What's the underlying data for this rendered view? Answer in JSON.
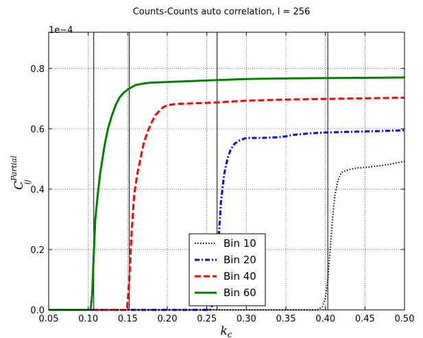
{
  "chart_data": {
    "type": "line",
    "title": "Counts-Counts auto correlation, l = 256",
    "xlabel": "k",
    "xlabel_sub": "c",
    "ylabel": "C",
    "ylabel_sub": "ij",
    "ylabel_sup": "Partial",
    "offset_label": "1e−4",
    "xlim": [
      0.05,
      0.5
    ],
    "ylim": [
      0.0,
      0.92
    ],
    "xticks": [
      "0.05",
      "0.10",
      "0.15",
      "0.20",
      "0.25",
      "0.30",
      "0.35",
      "0.40",
      "0.45",
      "0.50"
    ],
    "yticks": [
      "0.0",
      "0.2",
      "0.4",
      "0.6",
      "0.8"
    ],
    "grid": true,
    "legend_position": "bottom-center",
    "vlines": [
      0.107,
      0.152,
      0.263,
      0.403
    ],
    "series": [
      {
        "name": "Bin 10",
        "color": "#000000",
        "style": "dotted",
        "x": [
          0.05,
          0.39,
          0.396,
          0.4,
          0.403,
          0.406,
          0.409,
          0.412,
          0.416,
          0.42,
          0.43,
          0.44,
          0.45,
          0.46,
          0.47,
          0.48,
          0.49,
          0.5
        ],
        "y": [
          0.0,
          0.0,
          0.01,
          0.04,
          0.1,
          0.2,
          0.3,
          0.38,
          0.43,
          0.455,
          0.465,
          0.47,
          0.472,
          0.475,
          0.478,
          0.482,
          0.487,
          0.492
        ]
      },
      {
        "name": "Bin 20",
        "color": "#0000ff",
        "style": "dashdot",
        "x": [
          0.05,
          0.254,
          0.258,
          0.262,
          0.265,
          0.268,
          0.272,
          0.276,
          0.28,
          0.285,
          0.29,
          0.3,
          0.32,
          0.34,
          0.35,
          0.36,
          0.38,
          0.4,
          0.43,
          0.46,
          0.5
        ],
        "y": [
          0.0,
          0.0,
          0.02,
          0.1,
          0.24,
          0.36,
          0.45,
          0.5,
          0.53,
          0.55,
          0.56,
          0.57,
          0.57,
          0.572,
          0.575,
          0.58,
          0.585,
          0.588,
          0.59,
          0.592,
          0.595
        ]
      },
      {
        "name": "Bin 40",
        "color": "#ff0000",
        "style": "dashed",
        "x": [
          0.05,
          0.149,
          0.152,
          0.155,
          0.158,
          0.162,
          0.166,
          0.17,
          0.175,
          0.18,
          0.185,
          0.19,
          0.195,
          0.2,
          0.21,
          0.23,
          0.26,
          0.3,
          0.35,
          0.4,
          0.45,
          0.5
        ],
        "y": [
          0.0,
          0.0,
          0.1,
          0.26,
          0.38,
          0.45,
          0.5,
          0.55,
          0.59,
          0.62,
          0.645,
          0.66,
          0.672,
          0.678,
          0.682,
          0.684,
          0.687,
          0.693,
          0.697,
          0.699,
          0.701,
          0.703
        ]
      },
      {
        "name": "Bin 60",
        "color": "#008000",
        "style": "solid",
        "x": [
          0.05,
          0.103,
          0.105,
          0.107,
          0.109,
          0.112,
          0.115,
          0.118,
          0.121,
          0.125,
          0.13,
          0.135,
          0.14,
          0.145,
          0.15,
          0.155,
          0.16,
          0.17,
          0.18,
          0.2,
          0.25,
          0.3,
          0.35,
          0.4,
          0.45,
          0.5
        ],
        "y": [
          0.0,
          0.0,
          0.05,
          0.18,
          0.3,
          0.38,
          0.45,
          0.5,
          0.55,
          0.6,
          0.645,
          0.68,
          0.705,
          0.72,
          0.73,
          0.738,
          0.745,
          0.75,
          0.753,
          0.755,
          0.76,
          0.765,
          0.767,
          0.768,
          0.769,
          0.77
        ]
      }
    ]
  }
}
